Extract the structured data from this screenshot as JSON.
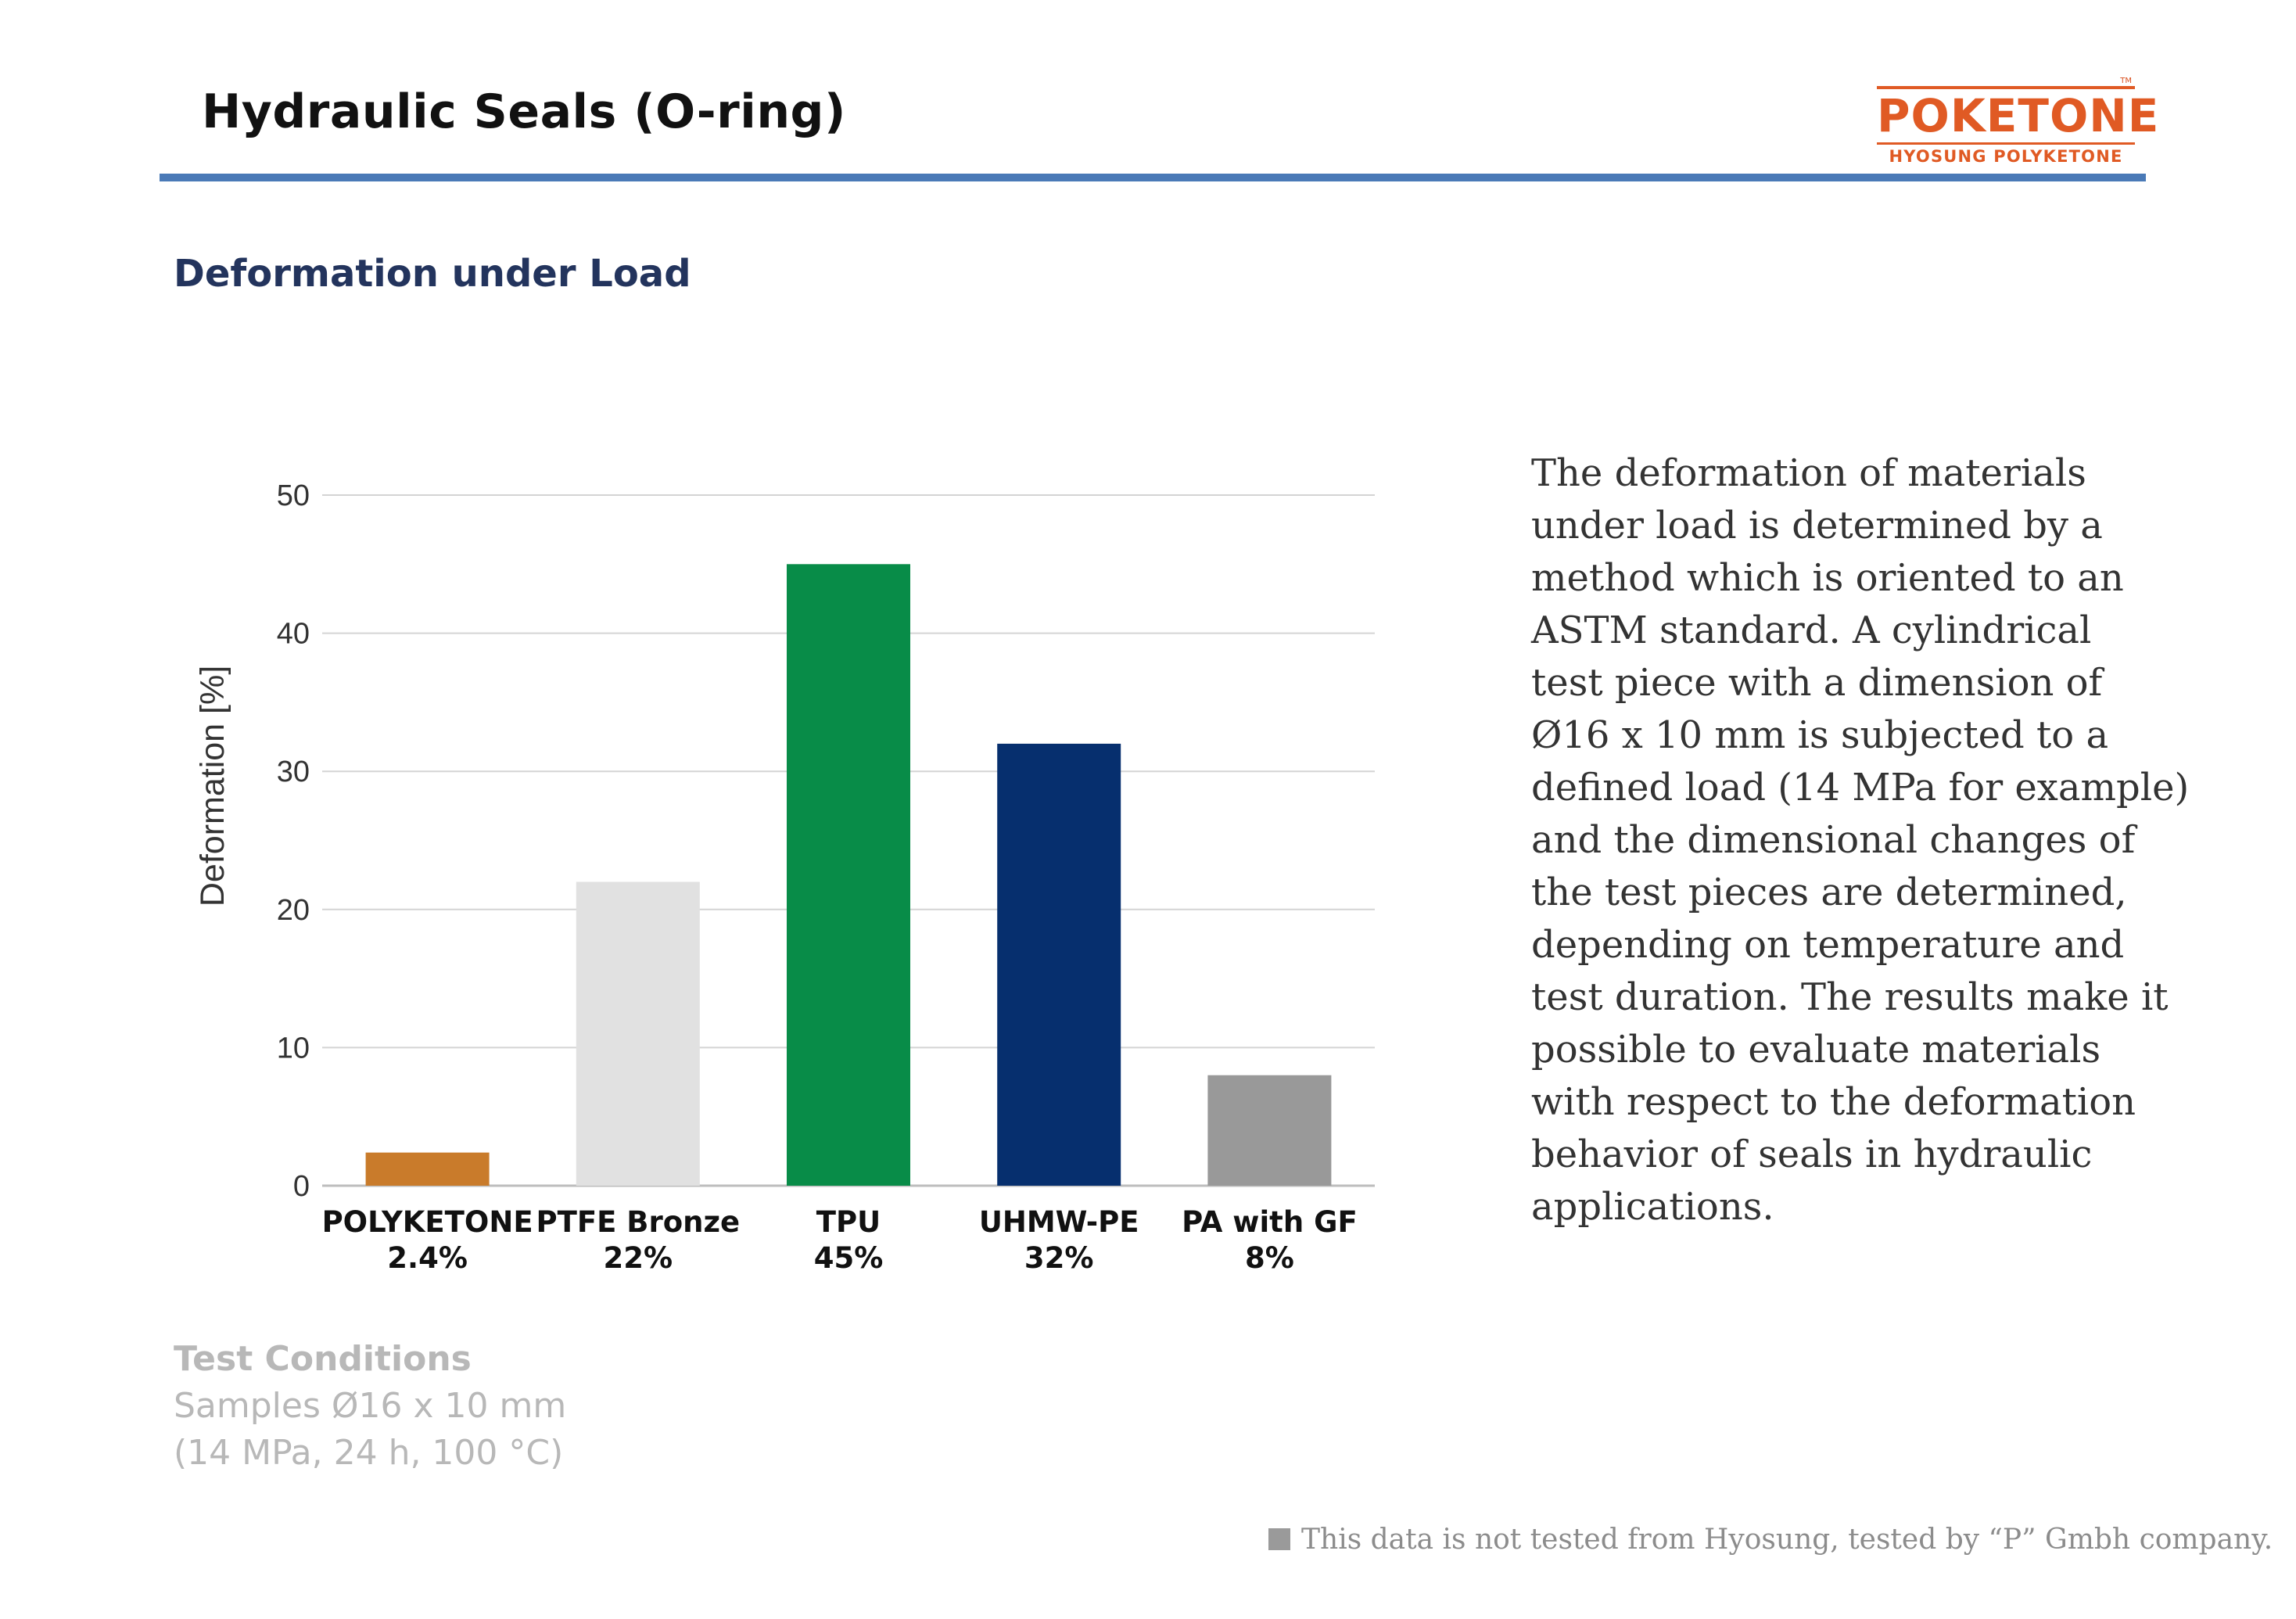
{
  "slide": {
    "title": "Hydraulic Seals (O-ring)",
    "section_heading": "Deformation under Load"
  },
  "logo": {
    "wordmark": "POKETONE",
    "tagline": "HYOSUNG POLYKETONE",
    "trademark": "TM",
    "color": "#e05a24"
  },
  "chart_data": {
    "type": "bar",
    "title": "",
    "xlabel": "",
    "ylabel": "Deformation [%]",
    "ylim": [
      0,
      50
    ],
    "yticks": [
      0,
      10,
      20,
      30,
      40,
      50
    ],
    "grid": true,
    "categories": [
      "POLYKETONE",
      "PTFE Bronze",
      "TPU",
      "UHMW-PE",
      "PA with GF"
    ],
    "values": [
      2.4,
      22,
      45,
      32,
      8
    ],
    "value_labels": [
      "2.4%",
      "22%",
      "45%",
      "32%",
      "8%"
    ],
    "colors": [
      "#c97b2b",
      "#e1e1e1",
      "#088c48",
      "#062f6e",
      "#999999"
    ]
  },
  "description": {
    "lines": [
      "The deformation of materials",
      "under load is determined by a",
      "method which is oriented to an",
      "ASTM standard. A cylindrical",
      "test piece with a dimension of",
      "Ø16 x 10 mm is subjected to a",
      "defined load (14 MPa for example)",
      "and the dimensional changes of",
      "the test pieces are determined,",
      "depending on temperature and",
      "test duration. The results make it",
      "possible to evaluate materials",
      "with respect to the deformation",
      "behavior of seals in hydraulic",
      "applications."
    ]
  },
  "test_conditions": {
    "heading": "Test Conditions",
    "line1": "Samples Ø16 x 10 mm",
    "line2": "(14 MPa, 24 h, 100 °C)"
  },
  "footnote": {
    "text": "This data is not tested from Hyosung, tested by “P” Gmbh company."
  }
}
